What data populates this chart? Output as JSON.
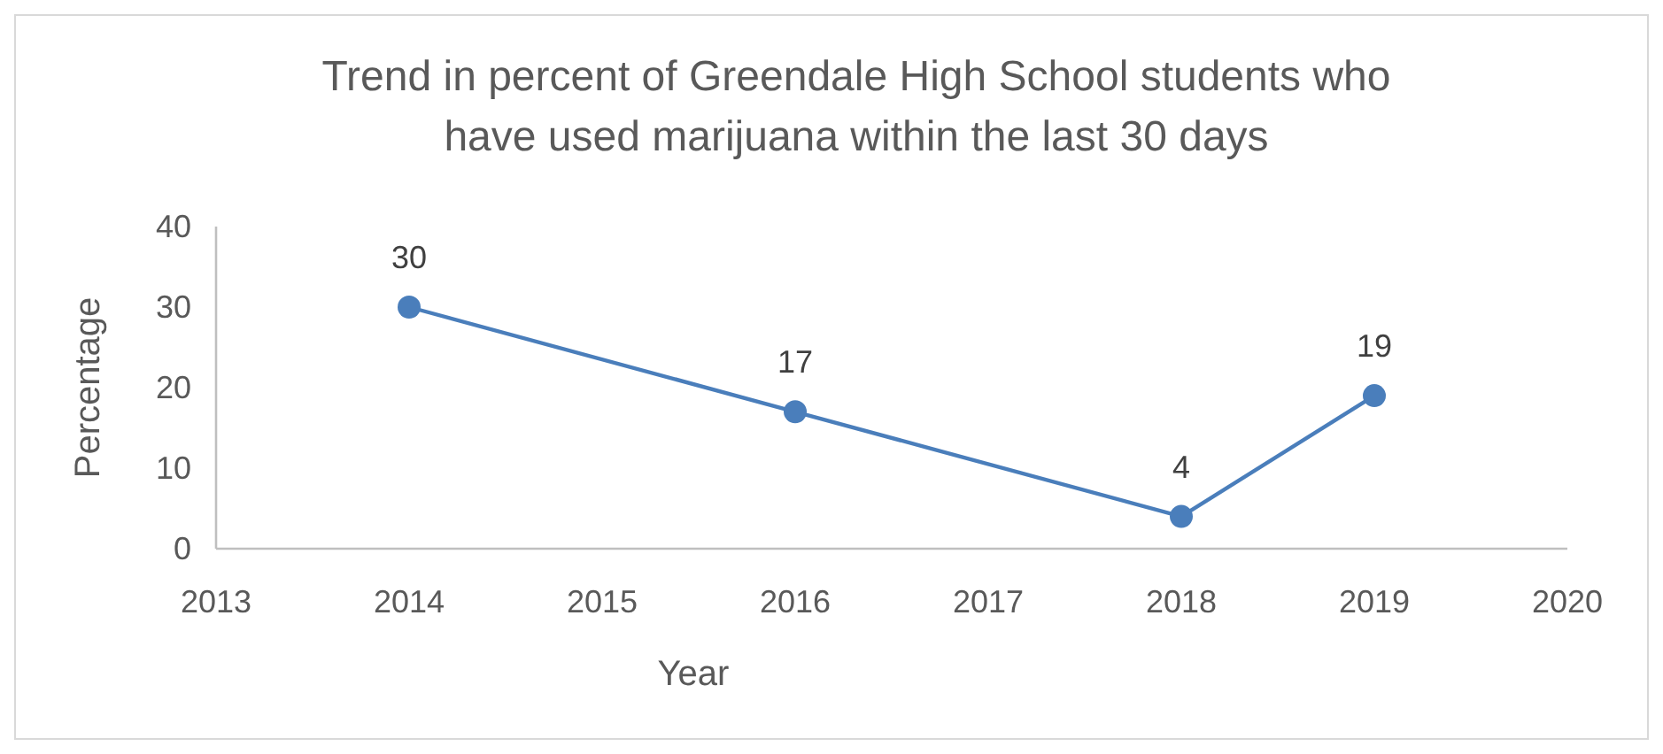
{
  "chart_data": {
    "type": "line",
    "title": "Trend in percent of Greendale High School students who have used marijuana within the last 30 days",
    "xlabel": "Year",
    "ylabel": "Percentage",
    "x": [
      2014,
      2016,
      2018,
      2019
    ],
    "series": [
      {
        "color": "#4a7ebb",
        "values": [
          30,
          17,
          4,
          19
        ]
      }
    ],
    "xlim": [
      2013,
      2020
    ],
    "xticks": [
      2013,
      2014,
      2015,
      2016,
      2017,
      2018,
      2019,
      2020
    ],
    "ylim": [
      0,
      40
    ],
    "yticks": [
      0,
      10,
      20,
      30,
      40
    ],
    "grid": false,
    "marker": "circle",
    "line_style": "solid",
    "data_labels": true
  }
}
